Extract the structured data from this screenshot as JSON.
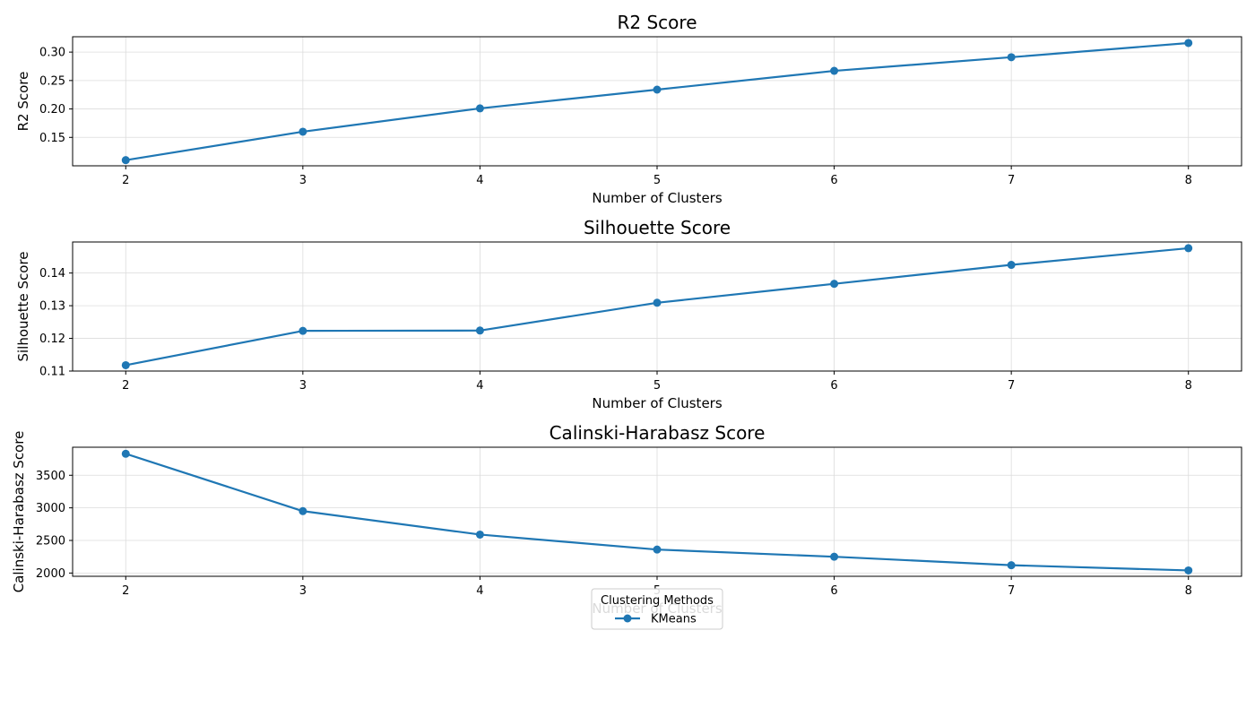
{
  "chart_data": [
    {
      "type": "line",
      "title": "R2 Score",
      "xlabel": "Number of Clusters",
      "ylabel": "R2 Score",
      "x": [
        2,
        3,
        4,
        5,
        6,
        7,
        8
      ],
      "xlim": [
        1.7,
        8.3
      ],
      "ylim": [
        0.1,
        0.327
      ],
      "yticks": [
        0.15,
        0.2,
        0.25,
        0.3
      ],
      "ytick_labels": [
        "0.15",
        "0.20",
        "0.25",
        "0.30"
      ],
      "grid": true,
      "series": [
        {
          "name": "KMeans",
          "color": "#1f77b4",
          "values": [
            0.11,
            0.16,
            0.201,
            0.234,
            0.267,
            0.291,
            0.316
          ]
        }
      ]
    },
    {
      "type": "line",
      "title": "Silhouette Score",
      "xlabel": "Number of Clusters",
      "ylabel": "Silhouette Score",
      "x": [
        2,
        3,
        4,
        5,
        6,
        7,
        8
      ],
      "xlim": [
        1.7,
        8.3
      ],
      "ylim": [
        0.11,
        0.1495
      ],
      "yticks": [
        0.11,
        0.12,
        0.13,
        0.14
      ],
      "ytick_labels": [
        "0.11",
        "0.12",
        "0.13",
        "0.14"
      ],
      "grid": true,
      "series": [
        {
          "name": "KMeans",
          "color": "#1f77b4",
          "values": [
            0.1118,
            0.1223,
            0.1224,
            0.1309,
            0.1367,
            0.1425,
            0.1476
          ]
        }
      ]
    },
    {
      "type": "line",
      "title": "Calinski-Harabasz Score",
      "xlabel": "Number of Clusters",
      "ylabel": "Calinski-Harabasz Score",
      "x": [
        2,
        3,
        4,
        5,
        6,
        7,
        8
      ],
      "xlim": [
        1.7,
        8.3
      ],
      "ylim": [
        1950,
        3930
      ],
      "yticks": [
        2000,
        2500,
        3000,
        3500
      ],
      "ytick_labels": [
        "2000",
        "2500",
        "3000",
        "3500"
      ],
      "grid": true,
      "series": [
        {
          "name": "KMeans",
          "color": "#1f77b4",
          "values": [
            3830,
            2950,
            2590,
            2360,
            2250,
            2120,
            2040
          ]
        }
      ]
    }
  ],
  "legend": {
    "title": "Clustering Methods",
    "placement": "lower-center",
    "entries": [
      {
        "label": "KMeans",
        "color": "#1f77b4"
      }
    ]
  }
}
